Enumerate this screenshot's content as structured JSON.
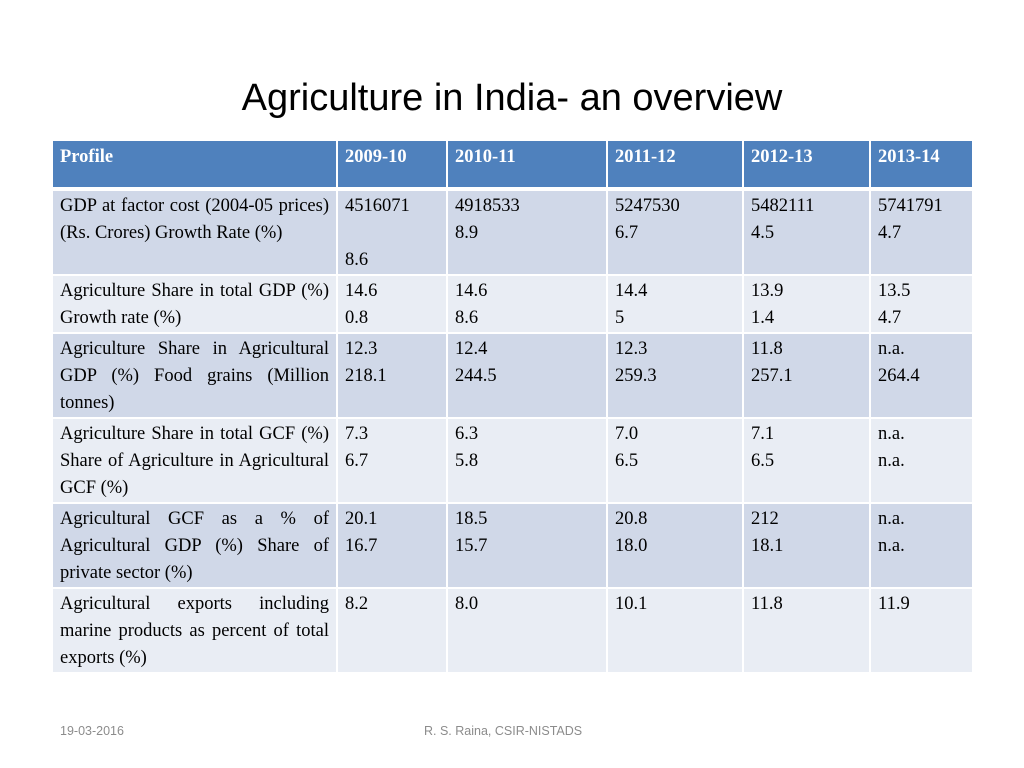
{
  "title": "Agriculture in India- an overview",
  "table": {
    "headers": [
      "Profile",
      "2009-10",
      "2010-11",
      "2011-12",
      "2012-13",
      "2013-14"
    ],
    "rows": [
      {
        "profile": "GDP at factor cost (2004-05 prices) (Rs. Crores) Growth Rate (%)",
        "values": [
          [
            "4516071",
            "",
            "8.6"
          ],
          [
            "4918533",
            "8.9"
          ],
          [
            "5247530",
            "6.7"
          ],
          [
            "5482111",
            "4.5"
          ],
          [
            "5741791",
            "4.7"
          ]
        ]
      },
      {
        "profile": "Agriculture Share in total GDP (%) Growth rate (%)",
        "values": [
          [
            "14.6",
            "0.8"
          ],
          [
            "14.6",
            "8.6"
          ],
          [
            "14.4",
            "5"
          ],
          [
            "13.9",
            "1.4"
          ],
          [
            "13.5",
            "4.7"
          ]
        ]
      },
      {
        "profile": "Agriculture Share in Agricultural GDP (%) Food grains (Million tonnes)",
        "values": [
          [
            "12.3",
            "218.1"
          ],
          [
            "12.4",
            "244.5"
          ],
          [
            "12.3",
            "259.3"
          ],
          [
            "11.8",
            "257.1"
          ],
          [
            "n.a.",
            "264.4"
          ]
        ]
      },
      {
        "profile": "Agriculture Share in total GCF (%) Share of Agriculture in Agricultural GCF (%)",
        "values": [
          [
            "7.3",
            "6.7"
          ],
          [
            "6.3",
            "5.8"
          ],
          [
            "7.0",
            "6.5"
          ],
          [
            "7.1",
            "6.5"
          ],
          [
            "n.a.",
            "n.a."
          ]
        ]
      },
      {
        "profile": "Agricultural GCF as a % of Agricultural GDP (%) Share of private sector (%)",
        "values": [
          [
            "20.1",
            "16.7"
          ],
          [
            "18.5",
            "15.7"
          ],
          [
            "20.8",
            "18.0"
          ],
          [
            "212",
            "18.1"
          ],
          [
            "n.a.",
            "n.a."
          ]
        ]
      },
      {
        "profile": "Agricultural exports including marine products as percent of total exports (%)",
        "values": [
          [
            "8.2"
          ],
          [
            "8.0"
          ],
          [
            "10.1"
          ],
          [
            "11.8"
          ],
          [
            "11.9"
          ]
        ]
      }
    ]
  },
  "footer": {
    "date": "19-03-2016",
    "author": "R. S. Raina, CSIR-NISTADS"
  }
}
